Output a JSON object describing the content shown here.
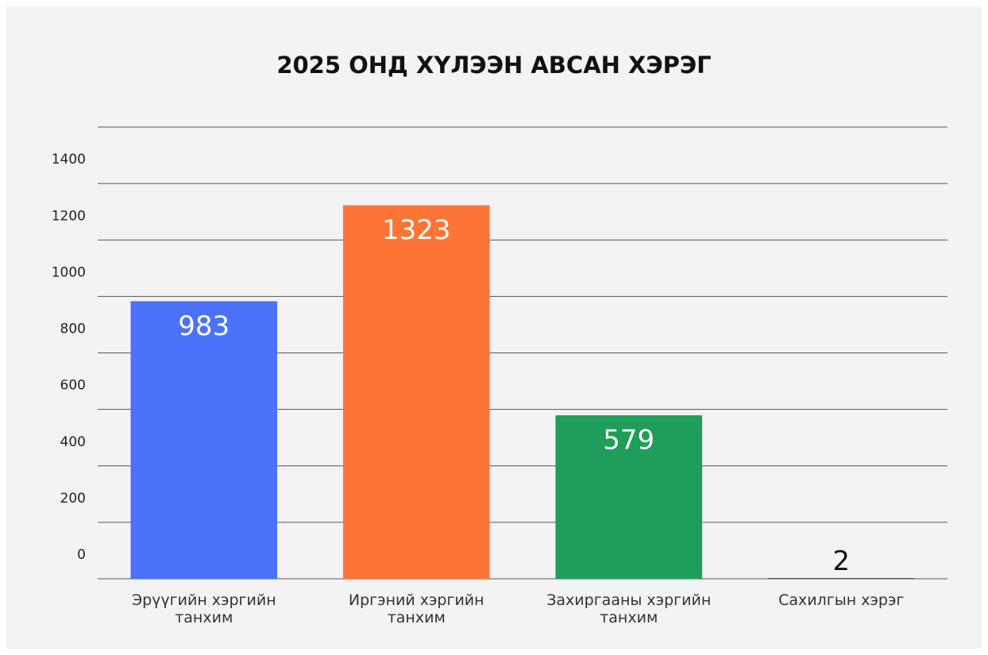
{
  "chart_data": {
    "type": "bar",
    "title": "2025 ОНД ХҮЛЭЭН АВСАН ХЭРЭГ",
    "categories": [
      "Эрүүгийн хэргийн танхим",
      "Иргэний хэргийн танхим",
      "Захиргааны хэргийн танхим",
      "Сахилгын хэрэг"
    ],
    "values": [
      983,
      1323,
      579,
      2
    ],
    "colors": [
      "#4a72fb",
      "#fd7536",
      "#1e9e58",
      "#0c1b2b"
    ],
    "ylim": [
      0,
      1600
    ],
    "yticks": [
      0,
      200,
      400,
      600,
      800,
      1000,
      1200,
      1400
    ],
    "grid": true
  }
}
